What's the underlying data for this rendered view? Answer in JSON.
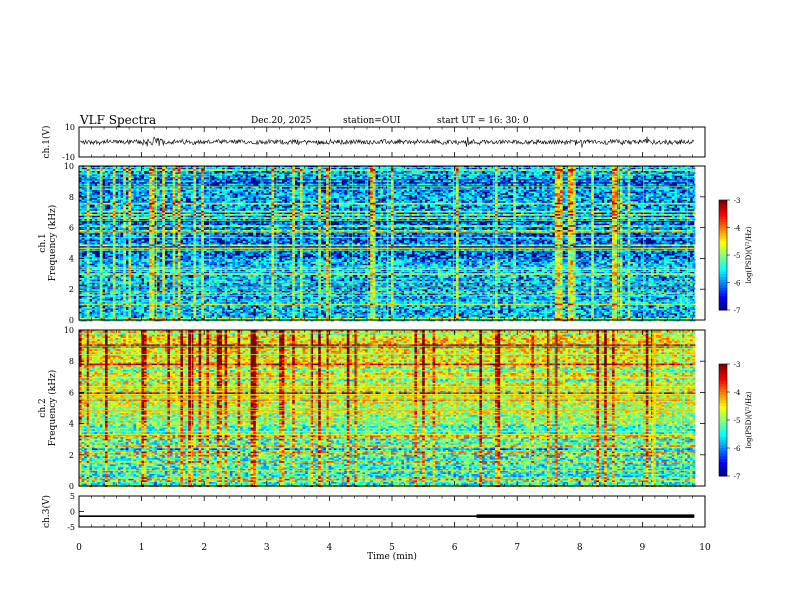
{
  "header": {
    "title": "VLF Spectra",
    "date": "Dec.20, 2025",
    "station": "station=OUI",
    "start": "start  UT =   16: 30: 0"
  },
  "chart_data": [
    {
      "type": "line",
      "name": "ch1-waveform",
      "ylabel": "ch.1(V)",
      "ylim": [
        -10,
        10
      ],
      "yticks": [
        "10",
        "-10"
      ],
      "xlim": [
        0,
        10
      ],
      "description_level": 0
    },
    {
      "type": "heatmap",
      "name": "ch1-spectrogram",
      "ylabel": "ch.1\nFrequency (kHz)",
      "ylabel_lines": [
        "ch.1",
        "Frequency (kHz)"
      ],
      "ylim": [
        0,
        10
      ],
      "yticks": [
        0,
        2,
        4,
        6,
        8,
        10
      ],
      "xlim": [
        0,
        10
      ],
      "data_end_x": 9.83,
      "colorbar": {
        "label": "log(PSD)(V²/Hz)",
        "ticks": [
          "-3",
          "-4",
          "-5",
          "-6",
          "-7"
        ],
        "range": [
          -7,
          -3
        ]
      }
    },
    {
      "type": "heatmap",
      "name": "ch2-spectrogram",
      "ylabel_lines": [
        "ch.2",
        "Frequency (kHz)"
      ],
      "ylim": [
        0,
        10
      ],
      "yticks": [
        0,
        2,
        4,
        6,
        8,
        10
      ],
      "xlim": [
        0,
        10
      ],
      "data_end_x": 9.83,
      "colorbar": {
        "label": "log(PSD)(V²/Hz)",
        "ticks": [
          "-3",
          "-4",
          "-5",
          "-6",
          "-7"
        ],
        "range": [
          -7,
          -3
        ]
      }
    },
    {
      "type": "line",
      "name": "ch3-level",
      "ylabel": "ch.3(V)",
      "ylim": [
        -5,
        5
      ],
      "yticks": [
        "5",
        "0",
        "-5"
      ],
      "xlim": [
        0,
        10
      ],
      "x": [
        0,
        6.35,
        6.35,
        9.83
      ],
      "y": [
        -1.5,
        -1.5,
        -1.5,
        -1.5
      ],
      "thick_from_x": 6.35,
      "xlabel": "Time (min)",
      "xticks": [
        "0",
        "1",
        "2",
        "3",
        "4",
        "5",
        "6",
        "7",
        "8",
        "9",
        "10"
      ]
    }
  ]
}
